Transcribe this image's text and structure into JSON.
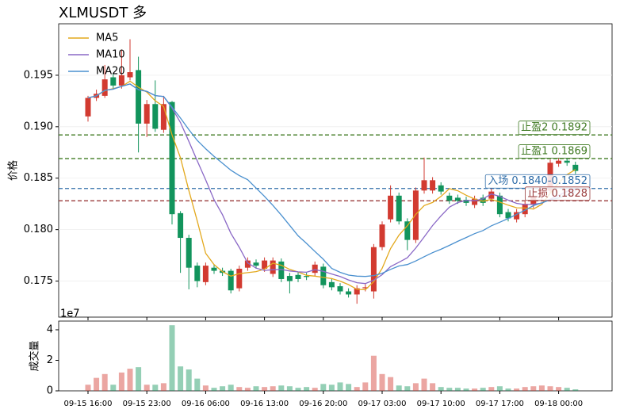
{
  "chart_data": {
    "type": "candlestick",
    "title": "XLMUSDT  多",
    "ylabel": "价格",
    "categories": [
      "09-15 16:00",
      null,
      null,
      null,
      null,
      null,
      null,
      "09-15 23:00",
      null,
      null,
      null,
      null,
      null,
      null,
      "09-16 06:00",
      null,
      null,
      null,
      null,
      null,
      null,
      "09-16 13:00",
      null,
      null,
      null,
      null,
      null,
      null,
      "09-16 20:00",
      null,
      null,
      null,
      null,
      null,
      null,
      "09-17 03:00",
      null,
      null,
      null,
      null,
      null,
      null,
      "09-17 10:00",
      null,
      null,
      null,
      null,
      null,
      null,
      "09-17 17:00",
      null,
      null,
      null,
      null,
      null,
      null,
      "09-18 00:00",
      null,
      null
    ],
    "open": [
      0.191,
      0.1928,
      0.193,
      0.1948,
      0.194,
      0.1948,
      0.1955,
      0.1903,
      0.1922,
      0.1897,
      0.1924,
      0.1816,
      0.1792,
      0.1765,
      0.1749,
      0.1763,
      0.176,
      0.176,
      0.1743,
      0.1763,
      0.1768,
      0.1762,
      0.1757,
      0.1769,
      0.1755,
      0.1756,
      0.1755,
      0.1758,
      0.1764,
      0.1749,
      0.1745,
      0.174,
      0.1737,
      0.1743,
      0.174,
      0.1783,
      0.181,
      0.1833,
      0.1808,
      0.179,
      0.1838,
      0.1838,
      0.1843,
      0.1833,
      0.1831,
      0.1829,
      0.1824,
      0.1831,
      0.183,
      0.1833,
      0.1817,
      0.181,
      0.1815,
      0.1824,
      0.1832,
      0.1838,
      0.1864,
      0.1867,
      0.1863
    ],
    "high": [
      0.193,
      0.1936,
      0.196,
      0.1952,
      0.1975,
      0.1985,
      0.1968,
      0.1926,
      0.1945,
      0.193,
      0.1925,
      0.1818,
      0.1795,
      0.1768,
      0.1768,
      0.1766,
      0.1763,
      0.1762,
      0.1765,
      0.1773,
      0.1771,
      0.1773,
      0.1773,
      0.1772,
      0.1758,
      0.1759,
      0.1758,
      0.1769,
      0.1767,
      0.1752,
      0.1748,
      0.1743,
      0.1746,
      0.1747,
      0.1786,
      0.1808,
      0.1843,
      0.1836,
      0.1811,
      0.1841,
      0.187,
      0.1851,
      0.1846,
      0.1836,
      0.1834,
      0.1832,
      0.1833,
      0.1834,
      0.184,
      0.1836,
      0.182,
      0.182,
      0.1828,
      0.1835,
      0.1841,
      0.1868,
      0.187,
      0.187,
      0.1866
    ],
    "low": [
      0.1905,
      0.1925,
      0.1928,
      0.1936,
      0.1937,
      0.1945,
      0.1875,
      0.189,
      0.1895,
      0.1894,
      0.1805,
      0.1758,
      0.1742,
      0.1744,
      0.1746,
      0.1757,
      0.1755,
      0.1738,
      0.174,
      0.176,
      0.1762,
      0.1759,
      0.1754,
      0.1749,
      0.1738,
      0.1749,
      0.1751,
      0.1755,
      0.1743,
      0.1741,
      0.1737,
      0.1734,
      0.1728,
      0.174,
      0.1733,
      0.178,
      0.1807,
      0.1805,
      0.178,
      0.1787,
      0.1835,
      0.1835,
      0.1834,
      0.1825,
      0.1825,
      0.1823,
      0.1821,
      0.1823,
      0.1827,
      0.1812,
      0.1808,
      0.1807,
      0.1812,
      0.1821,
      0.1829,
      0.1835,
      0.1861,
      0.1862,
      0.1854
    ],
    "close": [
      0.1928,
      0.1932,
      0.1946,
      0.194,
      0.195,
      0.1953,
      0.1903,
      0.1922,
      0.1898,
      0.1922,
      0.1815,
      0.1792,
      0.1763,
      0.175,
      0.1765,
      0.176,
      0.1758,
      0.1741,
      0.1762,
      0.177,
      0.1765,
      0.177,
      0.177,
      0.1752,
      0.175,
      0.1752,
      0.1754,
      0.1766,
      0.1746,
      0.1744,
      0.174,
      0.1737,
      0.1743,
      0.1744,
      0.1783,
      0.1805,
      0.1833,
      0.1808,
      0.179,
      0.1838,
      0.1848,
      0.1848,
      0.1837,
      0.1828,
      0.1828,
      0.1826,
      0.183,
      0.1826,
      0.1837,
      0.1815,
      0.1811,
      0.1817,
      0.1825,
      0.1832,
      0.1838,
      0.1865,
      0.1867,
      0.1865,
      0.1857
    ],
    "up_color": "#d23a30",
    "down_color": "#12945c",
    "ylim": [
      0.1715,
      0.2
    ],
    "yticks": [
      0.175,
      {
        "value": 0.18,
        "label": "0.180"
      },
      0.185,
      {
        "value": 0.19,
        "label": "0.190"
      },
      0.195
    ],
    "grid": true,
    "legend": "upper left",
    "series": [
      {
        "name": "MA5",
        "color": "#e3a81c",
        "values": [
          0.1928,
          0.193,
          0.1935,
          0.1937,
          0.1939,
          0.19442,
          0.19384,
          0.19336,
          0.19252,
          0.19196,
          0.1892,
          0.18698,
          0.1838,
          0.18084,
          0.1777,
          0.1766,
          0.17592,
          0.17548,
          0.17572,
          0.17582,
          0.17592,
          0.17616,
          0.17674,
          0.17654,
          0.17614,
          0.17588,
          0.17556,
          0.17548,
          0.17536,
          0.17524,
          0.175,
          0.17466,
          0.1742,
          0.17416,
          0.17494,
          0.17624,
          0.17816,
          0.17946,
          0.18038,
          0.18148,
          0.18234,
          0.18264,
          0.18322,
          0.18398,
          0.18378,
          0.18334,
          0.18298,
          0.18276,
          0.18294,
          0.18268,
          0.18238,
          0.18212,
          0.1821,
          0.182,
          0.18246,
          0.18354,
          0.18454,
          0.18534,
          0.18584
        ]
      },
      {
        "name": "MA10",
        "color": "#8a68c6",
        "values": [
          0.1928,
          0.193,
          0.19353,
          0.19365,
          0.19392,
          0.19415,
          0.1936,
          0.19343,
          0.19302,
          0.19294,
          0.19181,
          0.19041,
          0.18858,
          0.18668,
          0.18483,
          0.1829,
          0.18145,
          0.17964,
          0.17828,
          0.17676,
          0.17626,
          0.17604,
          0.17611,
          0.17613,
          0.17598,
          0.1759,
          0.17586,
          0.17611,
          0.17595,
          0.17569,
          0.17544,
          0.17511,
          0.17484,
          0.17476,
          0.17509,
          0.17562,
          0.17641,
          0.17683,
          0.17727,
          0.17821,
          0.17929,
          0.1804,
          0.18134,
          0.18218,
          0.18263,
          0.18284,
          0.18281,
          0.18299,
          0.18346,
          0.18323,
          0.18286,
          0.18255,
          0.18243,
          0.18247,
          0.18257,
          0.18296,
          0.18333,
          0.18372,
          0.18392
        ]
      },
      {
        "name": "MA20",
        "color": "#4a90cf",
        "values": [
          0.1928,
          0.193,
          0.19353,
          0.19365,
          0.19392,
          0.19415,
          0.1936,
          0.19343,
          0.19302,
          0.19294,
          0.1919,
          0.19084,
          0.18972,
          0.18867,
          0.18786,
          0.18712,
          0.18645,
          0.18577,
          0.18526,
          0.18485,
          0.18404,
          0.18323,
          0.18235,
          0.18141,
          0.18041,
          0.1794,
          0.17866,
          0.17788,
          0.17712,
          0.17623,
          0.17585,
          0.17558,
          0.17548,
          0.17545,
          0.17554,
          0.17576,
          0.17614,
          0.17647,
          0.17661,
          0.17695,
          0.17737,
          0.17776,
          0.17809,
          0.17847,
          0.17886,
          0.17923,
          0.17961,
          0.17991,
          0.18037,
          0.18072,
          0.18108,
          0.18148,
          0.18189,
          0.18233,
          0.1826,
          0.1829,
          0.18307,
          0.18336,
          0.18369
        ]
      }
    ],
    "levels": [
      {
        "label": "止盈2 0.1892",
        "value": 0.1892,
        "color": "#3f7a22"
      },
      {
        "label": "止盈1 0.1869",
        "value": 0.1869,
        "color": "#3f7a22"
      },
      {
        "label": "入场 0.1840-0.1852",
        "value": 0.184,
        "color": "#2e6ca8"
      },
      {
        "label": "止损 0.1828",
        "value": 0.1828,
        "color": "#9a3b3b"
      }
    ],
    "volume": {
      "ylabel": "成交量",
      "offset_label": "1e7",
      "ylim": [
        0,
        4.57
      ],
      "yticks": [
        0,
        2,
        4
      ],
      "opacity": 0.45,
      "values": [
        0.4,
        0.85,
        1.1,
        0.4,
        1.2,
        1.45,
        1.55,
        0.4,
        0.4,
        0.5,
        4.3,
        1.6,
        1.4,
        0.8,
        0.35,
        0.2,
        0.3,
        0.4,
        0.25,
        0.2,
        0.3,
        0.25,
        0.3,
        0.35,
        0.3,
        0.2,
        0.25,
        0.2,
        0.45,
        0.4,
        0.55,
        0.45,
        0.25,
        0.55,
        2.3,
        1.1,
        0.9,
        0.35,
        0.3,
        0.5,
        0.8,
        0.5,
        0.25,
        0.2,
        0.2,
        0.15,
        0.15,
        0.2,
        0.25,
        0.3,
        0.15,
        0.15,
        0.25,
        0.3,
        0.35,
        0.3,
        0.25,
        0.2,
        0.1
      ]
    }
  }
}
